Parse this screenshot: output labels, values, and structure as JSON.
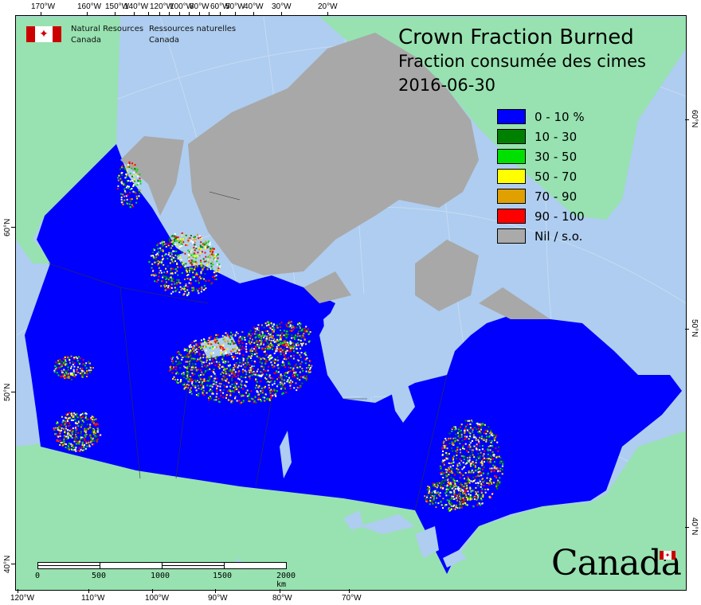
{
  "header": {
    "agency_en": [
      "Natural Resources",
      "Canada"
    ],
    "agency_fr": [
      "Ressources naturelles",
      "Canada"
    ],
    "flag_icon": "canada-flag"
  },
  "title": {
    "line1": "Crown Fraction Burned",
    "line2": "Fraction consumée des cimes",
    "date": "2016-06-30"
  },
  "legend": [
    {
      "label": "0 - 10 %",
      "color": "#0000ff"
    },
    {
      "label": "10 - 30",
      "color": "#008000"
    },
    {
      "label": "30 - 50",
      "color": "#00e000"
    },
    {
      "label": "50 - 70",
      "color": "#ffff00"
    },
    {
      "label": "70 - 90",
      "color": "#e0a000"
    },
    {
      "label": "90 - 100",
      "color": "#ff0000"
    },
    {
      "label": "Nil / s.o.",
      "color": "#aaaaaa"
    }
  ],
  "axes": {
    "top": [
      "170°W",
      "160°W",
      "150°W",
      "140°W",
      "120°W",
      "100°W",
      "80°W",
      "60°W",
      "50°W",
      "40°W",
      "30°W",
      "20°W"
    ],
    "bottom": [
      "120°W",
      "110°W",
      "100°W",
      "90°W",
      "80°W",
      "70°W"
    ],
    "left": [
      "60°N",
      "50°N",
      "40°N"
    ],
    "right": [
      "60°N",
      "50°N",
      "40°N"
    ]
  },
  "scale_bar": {
    "labels": [
      "0",
      "500",
      "1000",
      "1500",
      "2000 km"
    ]
  },
  "wordmark": "Canada",
  "colors": {
    "ocean": "#aecdf0",
    "other_land": "#97e2b0",
    "no_data": "#aaaaaa",
    "low": "#0000ff"
  }
}
